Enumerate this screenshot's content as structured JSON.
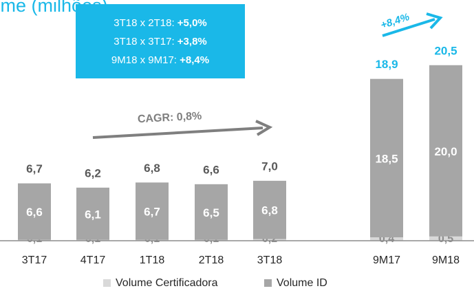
{
  "chart_data": {
    "type": "stacked_bar",
    "title": "Volume (milhões)",
    "categories": [
      "3T17",
      "4T17",
      "1T18",
      "2T18",
      "3T18",
      "9M17",
      "9M18"
    ],
    "series": [
      {
        "name": "Volume Certificadora",
        "color": "#d9d9d9",
        "values": [
          0.1,
          0.1,
          0.1,
          0.1,
          0.2,
          0.4,
          0.5
        ],
        "value_labels": [
          "0,1",
          "0,1",
          "0,1",
          "0,1",
          "0,2",
          "0,4",
          "0,5"
        ]
      },
      {
        "name": "Volume ID",
        "color": "#a6a6a6",
        "values": [
          6.6,
          6.1,
          6.7,
          6.5,
          6.8,
          18.5,
          20.0
        ],
        "value_labels": [
          "6,6",
          "6,1",
          "6,7",
          "6,5",
          "6,8",
          "18,5",
          "20,0"
        ]
      }
    ],
    "totals": [
      6.7,
      6.2,
      6.8,
      6.6,
      7.0,
      18.9,
      20.5
    ],
    "total_labels": [
      "6,7",
      "6,2",
      "6,8",
      "6,6",
      "7,0",
      "18,9",
      "20,5"
    ],
    "annotations": {
      "box": [
        {
          "label": "3T18 x 2T18:",
          "value": "+5,0%"
        },
        {
          "label": "3T18 x 3T17:",
          "value": "+3,8%"
        },
        {
          "label": "9M18 x 9M17:",
          "value": "+8,4%"
        }
      ],
      "cagr": "CAGR: 0,8%",
      "growth": "+8,4%"
    },
    "legend": "bottom"
  }
}
